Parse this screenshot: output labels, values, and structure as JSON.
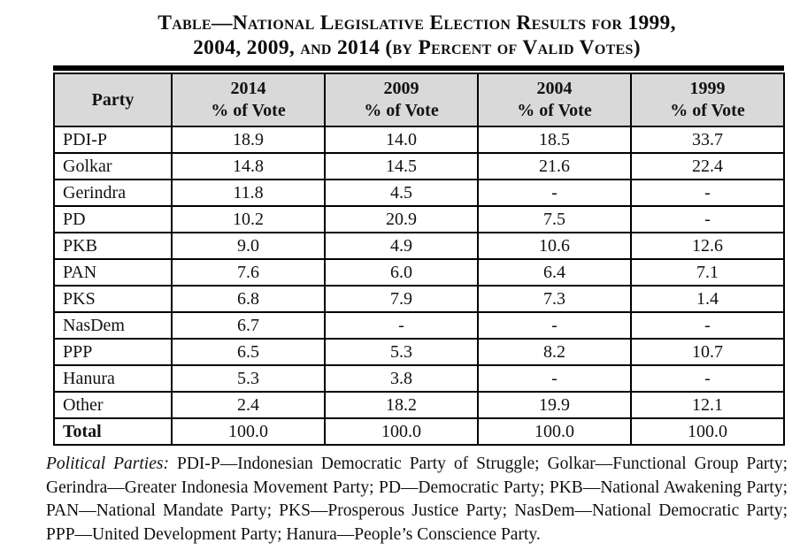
{
  "title": {
    "line1": "Table—National Legislative Election Results for 1999,",
    "line2": "2004, 2009, and 2014 (by Percent of Valid Votes)"
  },
  "table": {
    "columns": [
      {
        "label": "Party"
      },
      {
        "year": "2014",
        "sub": "% of Vote"
      },
      {
        "year": "2009",
        "sub": "% of Vote"
      },
      {
        "year": "2004",
        "sub": "% of Vote"
      },
      {
        "year": "1999",
        "sub": "% of Vote"
      }
    ],
    "rows": [
      {
        "party": "PDI-P",
        "values": [
          "18.9",
          "14.0",
          "18.5",
          "33.7"
        ]
      },
      {
        "party": "Golkar",
        "values": [
          "14.8",
          "14.5",
          "21.6",
          "22.4"
        ]
      },
      {
        "party": "Gerindra",
        "values": [
          "11.8",
          "4.5",
          "-",
          "-"
        ]
      },
      {
        "party": "PD",
        "values": [
          "10.2",
          "20.9",
          "7.5",
          "-"
        ]
      },
      {
        "party": "PKB",
        "values": [
          "9.0",
          "4.9",
          "10.6",
          "12.6"
        ]
      },
      {
        "party": "PAN",
        "values": [
          "7.6",
          "6.0",
          "6.4",
          "7.1"
        ]
      },
      {
        "party": "PKS",
        "values": [
          "6.8",
          "7.9",
          "7.3",
          "1.4"
        ]
      },
      {
        "party": "NasDem",
        "values": [
          "6.7",
          "-",
          "-",
          "-"
        ]
      },
      {
        "party": "PPP",
        "values": [
          "6.5",
          "5.3",
          "8.2",
          "10.7"
        ]
      },
      {
        "party": "Hanura",
        "values": [
          "5.3",
          "3.8",
          "-",
          "-"
        ]
      },
      {
        "party": "Other",
        "values": [
          "2.4",
          "18.2",
          "19.9",
          "12.1"
        ]
      },
      {
        "party": "Total",
        "values": [
          "100.0",
          "100.0",
          "100.0",
          "100.0"
        ]
      }
    ]
  },
  "footnote": {
    "label": "Political Parties:",
    "text": "PDI-P—Indonesian Democratic Party of Struggle; Golkar—Functional Group Party; Gerindra—Greater Indonesia Movement Party; PD—Democratic Party; PKB—National Awakening Party; PAN—National Mandate Party; PKS—Prosperous Justice Party; NasDem—National Democratic Party; PPP—United Development Party; Hanura—People’s Conscience Party."
  },
  "colors": {
    "header_bg": "#d9d9d9",
    "border": "#000000",
    "text": "#121212"
  }
}
